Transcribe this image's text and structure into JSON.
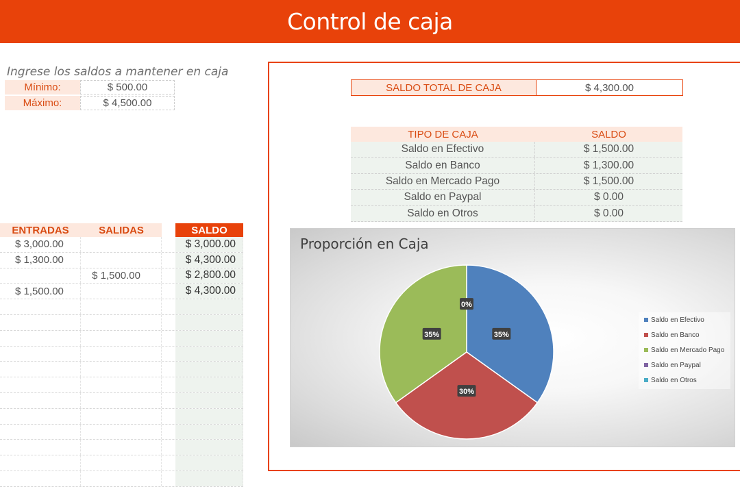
{
  "header": {
    "title": "Control de caja"
  },
  "limits": {
    "instruction": "Ingrese los saldos a mantener en caja",
    "min_label": "Mínimo:",
    "min_value": "$ 500.00",
    "max_label": "Máximo:",
    "max_value": "$ 4,500.00"
  },
  "ledger": {
    "headers": {
      "entradas": "ENTRADAS",
      "salidas": "SALIDAS",
      "saldo": "SALDO"
    },
    "rows": [
      {
        "entrada": "$ 3,000.00",
        "salida": "",
        "saldo": "$ 3,000.00"
      },
      {
        "entrada": "$ 1,300.00",
        "salida": "",
        "saldo": "$ 4,300.00"
      },
      {
        "entrada": "",
        "salida": "$ 1,500.00",
        "saldo": "$ 2,800.00"
      },
      {
        "entrada": "$ 1,500.00",
        "salida": "",
        "saldo": "$ 4,300.00"
      },
      {
        "entrada": "",
        "salida": "",
        "saldo": ""
      },
      {
        "entrada": "",
        "salida": "",
        "saldo": ""
      },
      {
        "entrada": "",
        "salida": "",
        "saldo": ""
      },
      {
        "entrada": "",
        "salida": "",
        "saldo": ""
      },
      {
        "entrada": "",
        "salida": "",
        "saldo": ""
      },
      {
        "entrada": "",
        "salida": "",
        "saldo": ""
      },
      {
        "entrada": "",
        "salida": "",
        "saldo": ""
      },
      {
        "entrada": "",
        "salida": "",
        "saldo": ""
      },
      {
        "entrada": "",
        "salida": "",
        "saldo": ""
      },
      {
        "entrada": "",
        "salida": "",
        "saldo": ""
      },
      {
        "entrada": "",
        "salida": "",
        "saldo": ""
      },
      {
        "entrada": "",
        "salida": "",
        "saldo": ""
      }
    ]
  },
  "summary": {
    "total_label": "SALDO TOTAL DE CAJA",
    "total_value": "$ 4,300.00",
    "table_headers": {
      "tipo": "TIPO DE CAJA",
      "saldo": "SALDO"
    },
    "rows": [
      {
        "tipo": "Saldo en Efectivo",
        "saldo": "$ 1,500.00"
      },
      {
        "tipo": "Saldo en Banco",
        "saldo": "$ 1,300.00"
      },
      {
        "tipo": "Saldo en Mercado Pago",
        "saldo": "$ 1,500.00"
      },
      {
        "tipo": "Saldo en Paypal",
        "saldo": "$ 0.00"
      },
      {
        "tipo": "Saldo en Otros",
        "saldo": "$ 0.00"
      }
    ]
  },
  "chart_data": {
    "type": "pie",
    "title": "Proporción en Caja",
    "categories": [
      "Saldo en Efectivo",
      "Saldo en Banco",
      "Saldo en Mercado Pago",
      "Saldo en Paypal",
      "Saldo en Otros"
    ],
    "values": [
      1500,
      1300,
      1500,
      0,
      0
    ],
    "labels": [
      "35%",
      "30%",
      "35%",
      "0%",
      "0%"
    ],
    "colors": [
      "#4f81bd",
      "#c0504d",
      "#9bbb59",
      "#8064a2",
      "#4bacc6"
    ],
    "legend": "right"
  }
}
